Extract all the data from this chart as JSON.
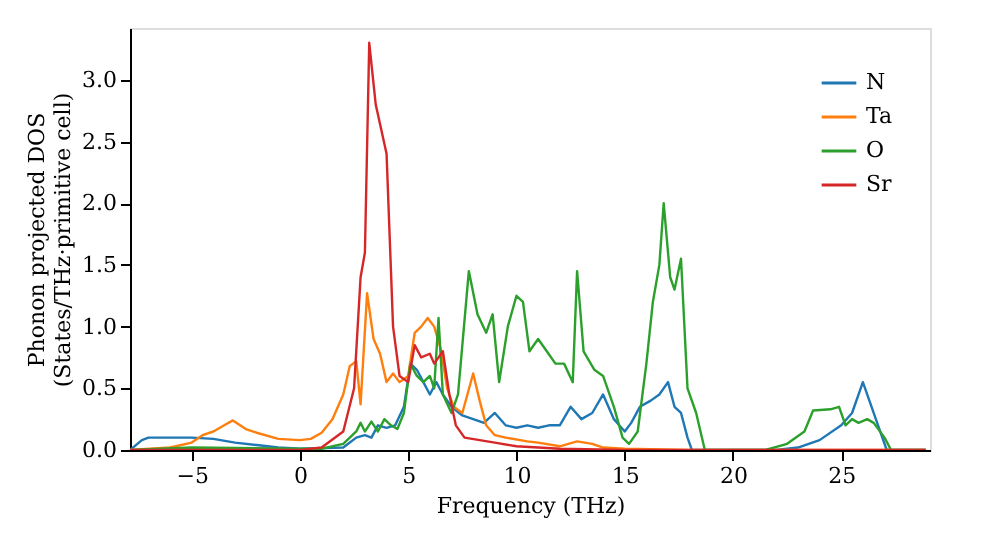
{
  "chart_data": {
    "type": "line",
    "xlabel": "Frequency (THz)",
    "ylabel": "Phonon projected DOS\n(States/THz·primitive cell)",
    "xlim": [
      -7.85,
      29.1
    ],
    "ylim": [
      0,
      3.42
    ],
    "xticks": [
      -5,
      0,
      5,
      10,
      15,
      20,
      25
    ],
    "yticks": [
      {
        "value": 0,
        "label": "0.0"
      },
      0.5,
      {
        "value": 1,
        "label": "1.0"
      },
      1.5,
      {
        "value": 2,
        "label": "2.0"
      },
      2.5,
      {
        "value": 3,
        "label": "3.0"
      }
    ],
    "grid": false,
    "legend": "top right",
    "line_style": "solid",
    "marker": "none",
    "series": [
      {
        "name": "N",
        "color": "#1f77b4",
        "x": [
          -7.85,
          -7.3,
          -7,
          -5,
          -4,
          -3,
          -2,
          -1,
          0,
          2,
          2.6,
          3,
          3.3,
          3.6,
          4,
          4.4,
          4.8,
          5.1,
          5.4,
          5.7,
          6,
          6.3,
          6.6,
          7,
          7.5,
          8,
          8.5,
          9,
          9.5,
          10,
          10.5,
          11,
          11.5,
          12,
          12.5,
          13,
          13.5,
          14,
          14.5,
          15,
          15.3,
          15.7,
          16.2,
          16.6,
          17,
          17.3,
          17.6,
          17.9,
          18.1,
          22,
          23,
          24,
          25,
          25.5,
          26,
          26.3,
          26.7,
          27.1,
          28.9
        ],
        "values": [
          0,
          0.08,
          0.1,
          0.1,
          0.09,
          0.06,
          0.04,
          0.02,
          0.01,
          0.02,
          0.1,
          0.12,
          0.1,
          0.2,
          0.18,
          0.2,
          0.35,
          0.7,
          0.65,
          0.55,
          0.45,
          0.55,
          0.45,
          0.35,
          0.28,
          0.25,
          0.22,
          0.3,
          0.2,
          0.18,
          0.2,
          0.18,
          0.2,
          0.2,
          0.35,
          0.25,
          0.3,
          0.45,
          0.25,
          0.15,
          0.22,
          0.35,
          0.4,
          0.45,
          0.55,
          0.35,
          0.3,
          0.1,
          0,
          0,
          0.02,
          0.08,
          0.2,
          0.3,
          0.55,
          0.4,
          0.2,
          0,
          0
        ]
      },
      {
        "name": "Ta",
        "color": "#ff7f0e",
        "x": [
          -7.85,
          -6,
          -5,
          -4.5,
          -4,
          -3.5,
          -3.1,
          -2.5,
          -2,
          -1,
          0,
          0.5,
          1,
          1.5,
          2,
          2.3,
          2.6,
          2.8,
          3.1,
          3.4,
          3.7,
          4,
          4.3,
          4.6,
          5,
          5.3,
          5.6,
          5.9,
          6.2,
          6.5,
          6.8,
          7.1,
          7.5,
          8,
          8.3,
          8.6,
          9,
          9.5,
          10.5,
          11,
          12,
          12.8,
          13.5,
          14,
          15,
          18,
          28.9
        ],
        "values": [
          0,
          0.02,
          0.06,
          0.12,
          0.15,
          0.2,
          0.24,
          0.17,
          0.14,
          0.09,
          0.08,
          0.09,
          0.14,
          0.25,
          0.45,
          0.68,
          0.72,
          0.37,
          1.27,
          0.9,
          0.78,
          0.55,
          0.62,
          0.55,
          0.6,
          0.95,
          1,
          1.07,
          1,
          0.82,
          0.5,
          0.35,
          0.3,
          0.62,
          0.4,
          0.2,
          0.12,
          0.1,
          0.07,
          0.06,
          0.03,
          0.07,
          0.05,
          0.02,
          0.01,
          0,
          0
        ]
      },
      {
        "name": "O",
        "color": "#2ca02c",
        "x": [
          -7.85,
          -5,
          0,
          1,
          2,
          2.6,
          2.8,
          3,
          3.3,
          3.6,
          3.9,
          4.2,
          4.5,
          4.8,
          5.1,
          5.4,
          5.7,
          6,
          6.2,
          6.4,
          6.6,
          7,
          7.3,
          7.8,
          8.2,
          8.6,
          8.9,
          9.2,
          9.6,
          10,
          10.3,
          10.6,
          11,
          11.4,
          11.8,
          12.2,
          12.6,
          12.8,
          13.1,
          13.6,
          14,
          14.5,
          14.9,
          15.2,
          15.6,
          16,
          16.3,
          16.6,
          16.8,
          17.1,
          17.3,
          17.6,
          17.9,
          18.3,
          18.7,
          21.5,
          22.5,
          23.3,
          23.7,
          24.5,
          24.9,
          25.2,
          25.5,
          25.8,
          26.2,
          26.5,
          27,
          27.3,
          28.9
        ],
        "values": [
          0,
          0.02,
          0.01,
          0.01,
          0.05,
          0.15,
          0.22,
          0.15,
          0.23,
          0.15,
          0.25,
          0.2,
          0.17,
          0.3,
          0.7,
          0.6,
          0.55,
          0.6,
          0.5,
          1.07,
          0.45,
          0.3,
          0.45,
          1.45,
          1.1,
          0.95,
          1.1,
          0.55,
          1,
          1.25,
          1.2,
          0.8,
          0.9,
          0.8,
          0.7,
          0.7,
          0.55,
          1.45,
          0.8,
          0.65,
          0.6,
          0.35,
          0.1,
          0.05,
          0.15,
          0.7,
          1.2,
          1.5,
          2,
          1.4,
          1.3,
          1.55,
          0.5,
          0.3,
          0,
          0,
          0.05,
          0.15,
          0.32,
          0.33,
          0.35,
          0.2,
          0.25,
          0.22,
          0.25,
          0.22,
          0.1,
          0,
          0
        ]
      },
      {
        "name": "Sr",
        "color": "#d62728",
        "x": [
          -7.85,
          0,
          1,
          2,
          2.5,
          2.8,
          3,
          3.2,
          3.5,
          4,
          4.3,
          4.6,
          5,
          5.3,
          5.6,
          6,
          6.2,
          6.6,
          6.9,
          7.2,
          7.6,
          9,
          10,
          12,
          15,
          28.9
        ],
        "values": [
          0,
          0,
          0.02,
          0.15,
          0.5,
          1.4,
          1.6,
          3.3,
          2.8,
          2.4,
          1,
          0.6,
          0.55,
          0.85,
          0.75,
          0.78,
          0.7,
          0.8,
          0.45,
          0.2,
          0.1,
          0.06,
          0.03,
          0.01,
          0,
          0
        ]
      }
    ]
  }
}
